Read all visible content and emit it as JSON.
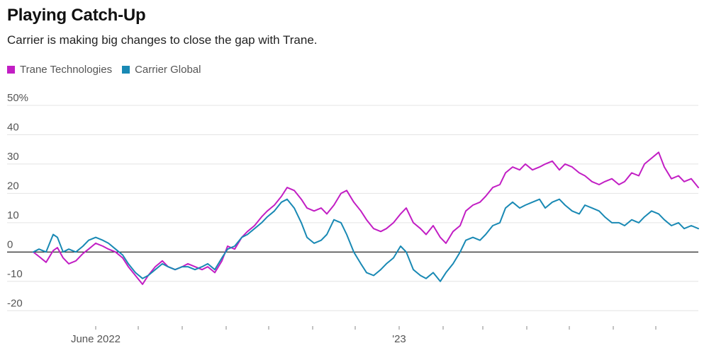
{
  "chart_data": {
    "type": "line",
    "title": "Playing Catch-Up",
    "subtitle": "Carrier is making big changes to close the gap with Trane.",
    "ylim": [
      -25,
      50
    ],
    "y_ticks": [
      -20,
      -10,
      0,
      10,
      20,
      30,
      40,
      50
    ],
    "y_tick_labels": [
      "-20",
      "-10",
      "0",
      "10",
      "20",
      "30",
      "40",
      "50%"
    ],
    "x_range": [
      "2022-04-18",
      "2023-07-31"
    ],
    "x_labeled_ticks": [
      {
        "date": "2022-06-01",
        "label": "June 2022"
      },
      {
        "date": "2023-01-01",
        "label": "'23"
      }
    ],
    "x_minor_ticks": [
      "2022-07-01",
      "2022-08-01",
      "2022-09-01",
      "2022-10-01",
      "2022-11-01",
      "2022-12-01",
      "2023-02-01",
      "2023-03-01",
      "2023-04-01",
      "2023-05-01",
      "2023-06-01",
      "2023-07-01"
    ],
    "zero_line": true,
    "grid": true,
    "legend_position": "top-left",
    "series": [
      {
        "name": "Trane Technologies",
        "color": "#c21ec4",
        "points": [
          [
            "2022-04-18",
            0
          ],
          [
            "2022-04-22",
            -1.5
          ],
          [
            "2022-04-27",
            -3.5
          ],
          [
            "2022-05-02",
            0.5
          ],
          [
            "2022-05-05",
            1.5
          ],
          [
            "2022-05-09",
            -2
          ],
          [
            "2022-05-13",
            -4
          ],
          [
            "2022-05-18",
            -3
          ],
          [
            "2022-05-23",
            -0.5
          ],
          [
            "2022-05-27",
            1
          ],
          [
            "2022-06-01",
            3
          ],
          [
            "2022-06-06",
            2
          ],
          [
            "2022-06-10",
            1
          ],
          [
            "2022-06-15",
            0
          ],
          [
            "2022-06-20",
            -2
          ],
          [
            "2022-06-24",
            -5
          ],
          [
            "2022-06-29",
            -8
          ],
          [
            "2022-07-04",
            -11
          ],
          [
            "2022-07-08",
            -8
          ],
          [
            "2022-07-13",
            -5
          ],
          [
            "2022-07-18",
            -3
          ],
          [
            "2022-07-22",
            -5
          ],
          [
            "2022-07-27",
            -6
          ],
          [
            "2022-08-01",
            -5
          ],
          [
            "2022-08-05",
            -4
          ],
          [
            "2022-08-10",
            -5
          ],
          [
            "2022-08-15",
            -6
          ],
          [
            "2022-08-19",
            -5
          ],
          [
            "2022-08-24",
            -7
          ],
          [
            "2022-08-29",
            -3
          ],
          [
            "2022-09-02",
            2
          ],
          [
            "2022-09-07",
            1
          ],
          [
            "2022-09-12",
            5
          ],
          [
            "2022-09-16",
            7
          ],
          [
            "2022-09-21",
            9
          ],
          [
            "2022-09-26",
            12
          ],
          [
            "2022-09-30",
            14
          ],
          [
            "2022-10-05",
            16
          ],
          [
            "2022-10-10",
            19
          ],
          [
            "2022-10-14",
            22
          ],
          [
            "2022-10-19",
            21
          ],
          [
            "2022-10-24",
            18
          ],
          [
            "2022-10-28",
            15
          ],
          [
            "2022-11-02",
            14
          ],
          [
            "2022-11-07",
            15
          ],
          [
            "2022-11-11",
            13
          ],
          [
            "2022-11-16",
            16
          ],
          [
            "2022-11-21",
            20
          ],
          [
            "2022-11-25",
            21
          ],
          [
            "2022-11-30",
            17
          ],
          [
            "2022-12-05",
            14
          ],
          [
            "2022-12-09",
            11
          ],
          [
            "2022-12-14",
            8
          ],
          [
            "2022-12-19",
            7
          ],
          [
            "2022-12-23",
            8
          ],
          [
            "2022-12-28",
            10
          ],
          [
            "2023-01-02",
            13
          ],
          [
            "2023-01-06",
            15
          ],
          [
            "2023-01-11",
            10
          ],
          [
            "2023-01-16",
            8
          ],
          [
            "2023-01-20",
            6
          ],
          [
            "2023-01-25",
            9
          ],
          [
            "2023-01-30",
            5
          ],
          [
            "2023-02-03",
            3
          ],
          [
            "2023-02-08",
            7
          ],
          [
            "2023-02-13",
            9
          ],
          [
            "2023-02-17",
            14
          ],
          [
            "2023-02-22",
            16
          ],
          [
            "2023-02-27",
            17
          ],
          [
            "2023-03-03",
            19
          ],
          [
            "2023-03-08",
            22
          ],
          [
            "2023-03-13",
            23
          ],
          [
            "2023-03-17",
            27
          ],
          [
            "2023-03-22",
            29
          ],
          [
            "2023-03-27",
            28
          ],
          [
            "2023-03-31",
            30
          ],
          [
            "2023-04-05",
            28
          ],
          [
            "2023-04-10",
            29
          ],
          [
            "2023-04-14",
            30
          ],
          [
            "2023-04-19",
            31
          ],
          [
            "2023-04-24",
            28
          ],
          [
            "2023-04-28",
            30
          ],
          [
            "2023-05-03",
            29
          ],
          [
            "2023-05-08",
            27
          ],
          [
            "2023-05-12",
            26
          ],
          [
            "2023-05-17",
            24
          ],
          [
            "2023-05-22",
            23
          ],
          [
            "2023-05-26",
            24
          ],
          [
            "2023-05-31",
            25
          ],
          [
            "2023-06-05",
            23
          ],
          [
            "2023-06-09",
            24
          ],
          [
            "2023-06-14",
            27
          ],
          [
            "2023-06-19",
            26
          ],
          [
            "2023-06-23",
            30
          ],
          [
            "2023-06-28",
            32
          ],
          [
            "2023-07-03",
            34
          ],
          [
            "2023-07-07",
            29
          ],
          [
            "2023-07-12",
            25
          ],
          [
            "2023-07-17",
            26
          ],
          [
            "2023-07-21",
            24
          ],
          [
            "2023-07-26",
            25
          ],
          [
            "2023-07-31",
            22
          ]
        ]
      },
      {
        "name": "Carrier Global",
        "color": "#1989b4",
        "points": [
          [
            "2022-04-18",
            0
          ],
          [
            "2022-04-22",
            1
          ],
          [
            "2022-04-27",
            0
          ],
          [
            "2022-05-02",
            6
          ],
          [
            "2022-05-05",
            5
          ],
          [
            "2022-05-09",
            0
          ],
          [
            "2022-05-13",
            1
          ],
          [
            "2022-05-18",
            0
          ],
          [
            "2022-05-23",
            2
          ],
          [
            "2022-05-27",
            4
          ],
          [
            "2022-06-01",
            5
          ],
          [
            "2022-06-06",
            4
          ],
          [
            "2022-06-10",
            3
          ],
          [
            "2022-06-15",
            1
          ],
          [
            "2022-06-20",
            -1
          ],
          [
            "2022-06-24",
            -4
          ],
          [
            "2022-06-29",
            -7
          ],
          [
            "2022-07-04",
            -9
          ],
          [
            "2022-07-08",
            -8
          ],
          [
            "2022-07-13",
            -6
          ],
          [
            "2022-07-18",
            -4
          ],
          [
            "2022-07-22",
            -5
          ],
          [
            "2022-07-27",
            -6
          ],
          [
            "2022-08-01",
            -5
          ],
          [
            "2022-08-05",
            -5
          ],
          [
            "2022-08-10",
            -6
          ],
          [
            "2022-08-15",
            -5
          ],
          [
            "2022-08-19",
            -4
          ],
          [
            "2022-08-24",
            -6
          ],
          [
            "2022-08-29",
            -2
          ],
          [
            "2022-09-02",
            1
          ],
          [
            "2022-09-07",
            2
          ],
          [
            "2022-09-12",
            5
          ],
          [
            "2022-09-16",
            6
          ],
          [
            "2022-09-21",
            8
          ],
          [
            "2022-09-26",
            10
          ],
          [
            "2022-09-30",
            12
          ],
          [
            "2022-10-05",
            14
          ],
          [
            "2022-10-10",
            17
          ],
          [
            "2022-10-14",
            18
          ],
          [
            "2022-10-19",
            15
          ],
          [
            "2022-10-24",
            10
          ],
          [
            "2022-10-28",
            5
          ],
          [
            "2022-11-02",
            3
          ],
          [
            "2022-11-07",
            4
          ],
          [
            "2022-11-11",
            6
          ],
          [
            "2022-11-16",
            11
          ],
          [
            "2022-11-21",
            10
          ],
          [
            "2022-11-25",
            6
          ],
          [
            "2022-11-30",
            0
          ],
          [
            "2022-12-05",
            -4
          ],
          [
            "2022-12-09",
            -7
          ],
          [
            "2022-12-14",
            -8
          ],
          [
            "2022-12-19",
            -6
          ],
          [
            "2022-12-23",
            -4
          ],
          [
            "2022-12-28",
            -2
          ],
          [
            "2023-01-02",
            2
          ],
          [
            "2023-01-06",
            0
          ],
          [
            "2023-01-11",
            -6
          ],
          [
            "2023-01-16",
            -8
          ],
          [
            "2023-01-20",
            -9
          ],
          [
            "2023-01-25",
            -7
          ],
          [
            "2023-01-30",
            -10
          ],
          [
            "2023-02-03",
            -7
          ],
          [
            "2023-02-08",
            -4
          ],
          [
            "2023-02-13",
            0
          ],
          [
            "2023-02-17",
            4
          ],
          [
            "2023-02-22",
            5
          ],
          [
            "2023-02-27",
            4
          ],
          [
            "2023-03-03",
            6
          ],
          [
            "2023-03-08",
            9
          ],
          [
            "2023-03-13",
            10
          ],
          [
            "2023-03-17",
            15
          ],
          [
            "2023-03-22",
            17
          ],
          [
            "2023-03-27",
            15
          ],
          [
            "2023-03-31",
            16
          ],
          [
            "2023-04-05",
            17
          ],
          [
            "2023-04-10",
            18
          ],
          [
            "2023-04-14",
            15
          ],
          [
            "2023-04-19",
            17
          ],
          [
            "2023-04-24",
            18
          ],
          [
            "2023-04-28",
            16
          ],
          [
            "2023-05-03",
            14
          ],
          [
            "2023-05-08",
            13
          ],
          [
            "2023-05-12",
            16
          ],
          [
            "2023-05-17",
            15
          ],
          [
            "2023-05-22",
            14
          ],
          [
            "2023-05-26",
            12
          ],
          [
            "2023-05-31",
            10
          ],
          [
            "2023-06-05",
            10
          ],
          [
            "2023-06-09",
            9
          ],
          [
            "2023-06-14",
            11
          ],
          [
            "2023-06-19",
            10
          ],
          [
            "2023-06-23",
            12
          ],
          [
            "2023-06-28",
            14
          ],
          [
            "2023-07-03",
            13
          ],
          [
            "2023-07-07",
            11
          ],
          [
            "2023-07-12",
            9
          ],
          [
            "2023-07-17",
            10
          ],
          [
            "2023-07-21",
            8
          ],
          [
            "2023-07-26",
            9
          ],
          [
            "2023-07-31",
            8
          ]
        ]
      }
    ]
  }
}
